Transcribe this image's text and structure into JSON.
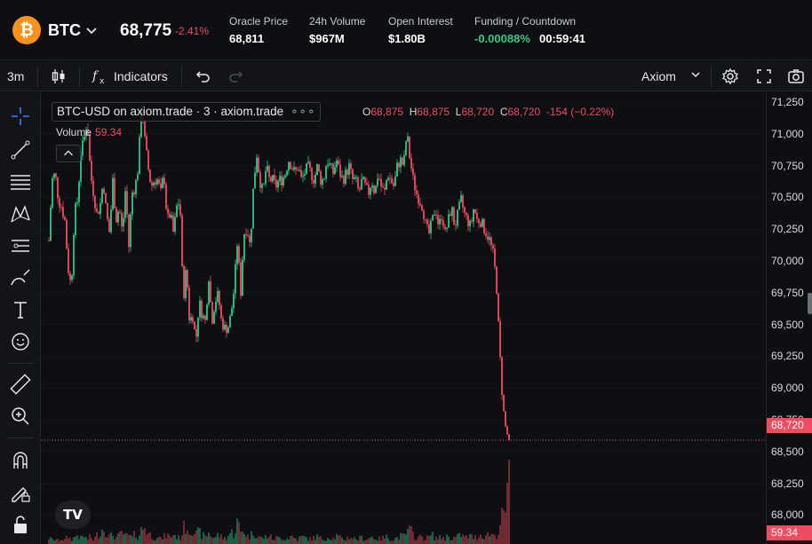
{
  "header": {
    "coin_logo_glyph": "₿",
    "symbol": "BTC",
    "last_price": "68,775",
    "change_pct": "-2.41%",
    "stats": [
      {
        "label": "Oracle Price",
        "value": "68,811"
      },
      {
        "label": "24h Volume",
        "value": "$967M"
      },
      {
        "label": "Open Interest",
        "value": "$1.80B"
      }
    ],
    "funding": {
      "label": "Funding / Countdown",
      "rate": "-0.00088%",
      "countdown": "00:59:41"
    }
  },
  "toolbar": {
    "interval": "3m",
    "indicators_label": "Indicators",
    "layout_label": "Axiom",
    "icons": [
      "candles-icon",
      "fx-icon",
      "undo-icon",
      "redo-icon",
      "settings-icon",
      "fullscreen-icon",
      "camera-icon"
    ]
  },
  "left_tools": [
    "crosshair-icon",
    "trendline-icon",
    "fib-icon",
    "pattern-icon",
    "forecast-icon",
    "brush-icon",
    "text-icon",
    "emoji-icon",
    "ruler-icon",
    "zoom-in-icon",
    "magnet-icon",
    "lock-draw-icon",
    "lock-icon"
  ],
  "legend": {
    "title": "BTC-USD on axiom.trade · 3 · axiom.trade",
    "more": "∘∘∘",
    "ohlc": {
      "o_label": "O",
      "o": "68,875",
      "h_label": "H",
      "h": "68,875",
      "l_label": "L",
      "l": "68,720",
      "c_label": "C",
      "c": "68,720",
      "change": "-154 (−0.22%)"
    },
    "volume_label": "Volume",
    "volume_value": "59.34",
    "tv_logo": "TV"
  },
  "price_axis": {
    "ticks": [
      "71,250",
      "71,000",
      "70,750",
      "70,500",
      "70,250",
      "70,000",
      "69,750",
      "69,500",
      "69,250",
      "69,000",
      "68,750",
      "68,500",
      "68,250",
      "68,000"
    ],
    "current_price_tag": "68,720",
    "volume_tag": "59.34"
  },
  "colors": {
    "up": "#2fc98a",
    "down": "#ef4c5f",
    "background": "#0e0f12",
    "accent_btc": "#f7931a"
  },
  "chart_data": {
    "type": "candlestick",
    "timeframe": "3m",
    "ylim": [
      67950,
      71300
    ],
    "current_price": 68720,
    "price_path": [
      70200,
      70650,
      70700,
      70500,
      70450,
      70350,
      70000,
      69850,
      70400,
      70500,
      70850,
      70950,
      71100,
      70700,
      70550,
      70400,
      70450,
      70650,
      70400,
      70250,
      70650,
      70350,
      70450,
      70250,
      70600,
      70150,
      70550,
      70600,
      70750,
      71250,
      70950,
      70750,
      70600,
      70650,
      70650,
      70550,
      70700,
      70350,
      70400,
      70250,
      70450,
      70500,
      69750,
      70000,
      69600,
      69650,
      69450,
      69750,
      69650,
      69600,
      69950,
      69600,
      69750,
      69800,
      69600,
      69550,
      69550,
      69650,
      69850,
      70200,
      69800,
      70250,
      70300,
      70150,
      70600,
      70850,
      70650,
      70550,
      70750,
      70650,
      70650,
      70600,
      70650,
      70650,
      70700,
      70800,
      70750,
      70700,
      70750,
      70650,
      70700,
      70750,
      70700,
      70650,
      70750,
      70650,
      70650,
      70800,
      70750,
      70700,
      70800,
      70700,
      70650,
      70700,
      70750,
      70650,
      70650,
      70550,
      70650,
      70600,
      70550,
      70650,
      70550,
      70700,
      70600,
      70550,
      70700,
      70650,
      70600,
      70750,
      70800,
      70750,
      71000,
      70800,
      70650,
      70550,
      70500,
      70450,
      70300,
      70250,
      70350,
      70450,
      70300,
      70400,
      70250,
      70350,
      70450,
      70300,
      70400,
      70500,
      70400,
      70350,
      70300,
      70450,
      70350,
      70350,
      70300,
      70250,
      70200,
      70100,
      69900,
      69400,
      69000,
      68800,
      68720
    ],
    "volume_profile": [
      8,
      5,
      6,
      4,
      7,
      5,
      9,
      6,
      8,
      12,
      7,
      10,
      6,
      9,
      5,
      11,
      14,
      20,
      16,
      9,
      12,
      8,
      10,
      15,
      9,
      11,
      7,
      13,
      9,
      18,
      22,
      14,
      11,
      8,
      10,
      6,
      9,
      12,
      8,
      13,
      9,
      7,
      18,
      24,
      16,
      21,
      12,
      15,
      11,
      9,
      14,
      10,
      8,
      12,
      9,
      7,
      10,
      15,
      12,
      28,
      14,
      18,
      10,
      9,
      16,
      12,
      8,
      7,
      9,
      11,
      6,
      8,
      7,
      9,
      6,
      8,
      10,
      7,
      6,
      9,
      8,
      7,
      6,
      8,
      9,
      7,
      6,
      8,
      9,
      7,
      10,
      8,
      6,
      7,
      9,
      8,
      6,
      7,
      8,
      6,
      7,
      9,
      8,
      6,
      7,
      8,
      9,
      7,
      6,
      8,
      10,
      9,
      14,
      18,
      12,
      9,
      8,
      10,
      7,
      9,
      11,
      8,
      7,
      9,
      8,
      10,
      7,
      8,
      9,
      12,
      8,
      9,
      10,
      8,
      9,
      12,
      10,
      11,
      13,
      12,
      10,
      20,
      35,
      60,
      100
    ]
  }
}
